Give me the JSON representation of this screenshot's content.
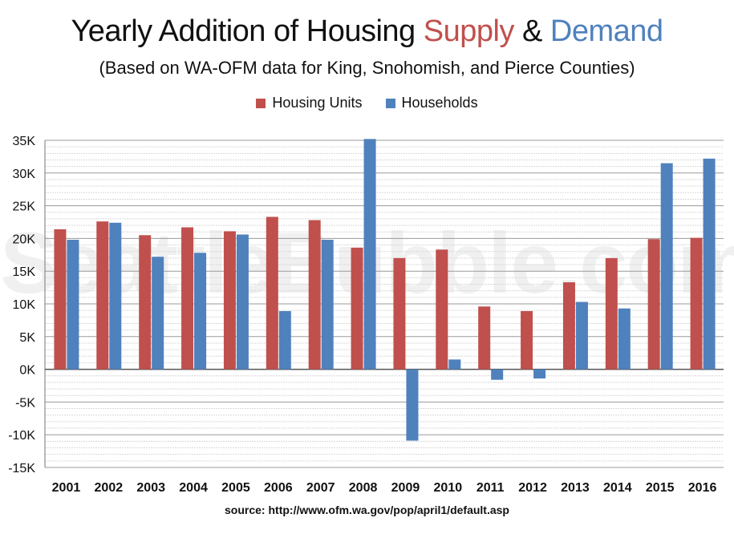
{
  "title": {
    "part1": "Yearly Addition of Housing ",
    "supply": "Supply",
    "amp": " & ",
    "demand": "Demand"
  },
  "subtitle": "(Based on WA-OFM data for King, Snohomish, and Pierce Counties)",
  "watermark": "SeattleBubble.com",
  "source": "source: http://www.ofm.wa.gov/pop/april1/default.asp",
  "colors": {
    "housing_units": "#c0504d",
    "households": "#4f81bd"
  },
  "chart_data": {
    "type": "bar",
    "categories": [
      "2001",
      "2002",
      "2003",
      "2004",
      "2005",
      "2006",
      "2007",
      "2008",
      "2009",
      "2010",
      "2011",
      "2012",
      "2013",
      "2014",
      "2015",
      "2016"
    ],
    "series": [
      {
        "name": "Housing Units",
        "values": [
          21400,
          22600,
          20500,
          21700,
          21100,
          23300,
          22800,
          18600,
          17000,
          18300,
          9600,
          8900,
          13300,
          17000,
          19900,
          20100
        ]
      },
      {
        "name": "Households",
        "values": [
          19800,
          22400,
          17200,
          17800,
          20600,
          8900,
          19800,
          35200,
          -10900,
          1500,
          -1600,
          -1400,
          10300,
          9300,
          31500,
          32200
        ]
      }
    ],
    "ylim": [
      -15000,
      35000
    ],
    "yticks": [
      35000,
      30000,
      25000,
      20000,
      15000,
      10000,
      5000,
      0,
      -5000,
      -10000,
      -15000
    ],
    "ytick_labels": [
      "35K",
      "30K",
      "25K",
      "20K",
      "15K",
      "10K",
      "5K",
      "0K",
      "-5K",
      "-10K",
      "-15K"
    ],
    "legend": "top-center",
    "grid": true
  }
}
